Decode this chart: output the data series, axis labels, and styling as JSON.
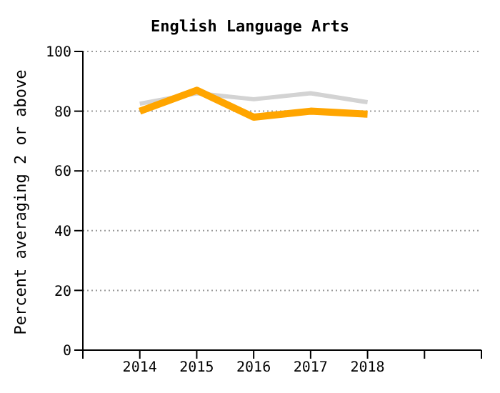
{
  "chart_data": {
    "type": "line",
    "title": "English Language Arts",
    "ylabel": "Percent averaging 2 or above",
    "x": [
      2014,
      2015,
      2016,
      2017,
      2018
    ],
    "series": [
      {
        "color": "#d3d3d3",
        "values": [
          82.5,
          86,
          84,
          86,
          83
        ]
      },
      {
        "color": "#ffa500",
        "values": [
          80,
          87,
          78,
          80,
          79
        ]
      }
    ],
    "xlim": [
      2013,
      2020
    ],
    "xticks": [
      {
        "value": 2013,
        "label": null
      },
      2014,
      2015,
      2016,
      2017,
      2018,
      {
        "value": 2019,
        "label": null
      },
      {
        "value": 2020,
        "label": null
      }
    ],
    "ylim": [
      0,
      100
    ],
    "yticks": [
      0,
      20,
      40,
      60,
      80,
      100
    ],
    "grid": "y",
    "marker": "none",
    "line_style": "solid"
  }
}
